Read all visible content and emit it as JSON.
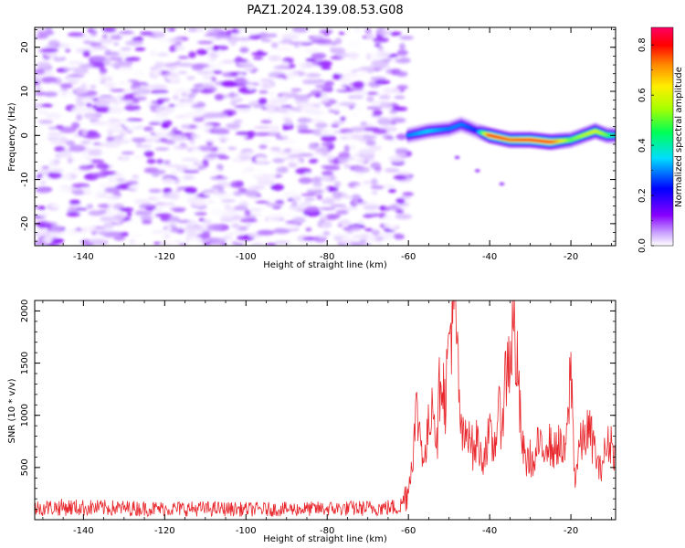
{
  "figure": {
    "title": "PAZ1.2024.139.08.53.G08"
  },
  "chart_data": [
    {
      "type": "heatmap",
      "title": "",
      "xlabel": "Height of straight line (km)",
      "ylabel": "Frequency (Hz)",
      "xlim": [
        -152,
        -9
      ],
      "ylim": [
        -25,
        24.5
      ],
      "xticks": [
        -140,
        -120,
        -100,
        -80,
        -60,
        -40,
        -20
      ],
      "yticks": [
        -20,
        -10,
        0,
        10,
        20
      ],
      "colorbar": {
        "label": "Normalized spectral amplitude",
        "range": [
          0,
          0.87
        ],
        "ticks": [
          0.0,
          0.2,
          0.4,
          0.6,
          0.8
        ],
        "colormap": [
          "#ffffff",
          "#8800ff",
          "#0000ff",
          "#00ddff",
          "#00ff55",
          "#aaff00",
          "#ffee00",
          "#ff8800",
          "#ff0000",
          "#ff0066"
        ]
      },
      "noise_region": {
        "x_range": [
          -152,
          -60
        ],
        "amplitude_range": [
          0.0,
          0.12
        ]
      },
      "signal_ridge": {
        "x": [
          -60,
          -55,
          -50,
          -47,
          -43,
          -40,
          -35,
          -30,
          -25,
          -20,
          -17,
          -14,
          -11,
          -9
        ],
        "freq_hz": [
          0,
          1,
          1.5,
          2.5,
          1,
          0,
          -1,
          -1,
          -1.5,
          -1,
          0,
          1,
          0,
          0
        ],
        "peak_amplitude": [
          0.3,
          0.35,
          0.3,
          0.3,
          0.25,
          0.8,
          0.75,
          0.8,
          0.8,
          0.5,
          0.55,
          0.6,
          0.5,
          0.4
        ]
      },
      "secondary_branch": {
        "x": [
          -48,
          -43,
          -37
        ],
        "freq_hz": [
          -5,
          -8,
          -11
        ]
      }
    },
    {
      "type": "line",
      "title": "",
      "xlabel": "Height of straight line (km)",
      "ylabel": "SNR (10 * v/v)",
      "xlim": [
        -152,
        -9
      ],
      "ylim": [
        0,
        2100
      ],
      "xticks": [
        -140,
        -120,
        -100,
        -80,
        -60,
        -40,
        -20
      ],
      "yticks": [
        500,
        1000,
        1500,
        2000
      ],
      "color": "#e8282d",
      "series": [
        {
          "name": "",
          "x": [
            -152,
            -145,
            -140,
            -130,
            -120,
            -110,
            -100,
            -90,
            -80,
            -70,
            -62,
            -60,
            -59,
            -58,
            -57,
            -56,
            -55,
            -54,
            -53,
            -52,
            -51,
            -50,
            -49,
            -48,
            -47,
            -46,
            -45,
            -44,
            -43,
            -42,
            -41,
            -40,
            -39,
            -38,
            -37,
            -36,
            -35,
            -34,
            -33,
            -32,
            -31,
            -30,
            -29,
            -28,
            -27,
            -26,
            -25,
            -24,
            -23,
            -22,
            -21,
            -20,
            -19,
            -18,
            -17,
            -16,
            -15,
            -14,
            -13,
            -12,
            -11,
            -10,
            -9
          ],
          "y": [
            110,
            120,
            115,
            110,
            105,
            105,
            100,
            100,
            105,
            110,
            120,
            300,
            600,
            1050,
            800,
            550,
            900,
            1250,
            700,
            1550,
            1100,
            1700,
            2100,
            1600,
            800,
            750,
            950,
            600,
            800,
            550,
            700,
            800,
            650,
            1000,
            950,
            1400,
            1600,
            1850,
            1300,
            700,
            550,
            600,
            500,
            750,
            600,
            800,
            700,
            650,
            750,
            600,
            750,
            1500,
            350,
            700,
            750,
            850,
            800,
            650,
            450,
            600,
            700,
            750,
            600
          ]
        }
      ]
    }
  ]
}
